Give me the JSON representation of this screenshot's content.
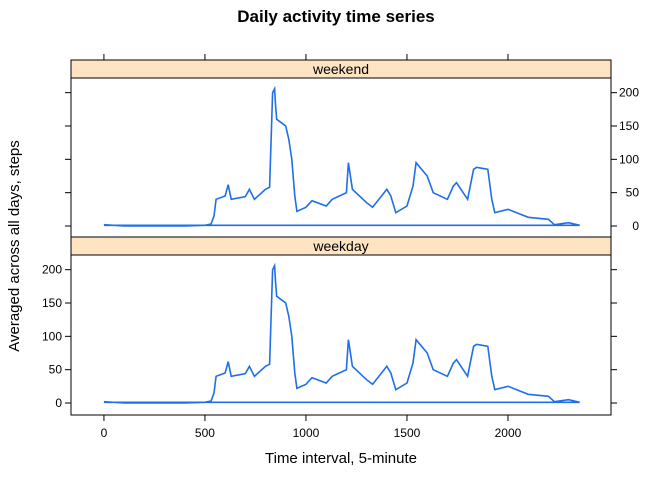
{
  "chart_data": {
    "type": "line",
    "title": "Daily activity time series",
    "xlabel": "Time interval, 5-minute",
    "ylabel": "Averaged across all days, steps",
    "color": "#1f6fe8",
    "x": [
      0,
      100,
      200,
      300,
      400,
      500,
      530,
      545,
      555,
      600,
      615,
      630,
      700,
      720,
      745,
      800,
      820,
      835,
      845,
      850,
      855,
      900,
      915,
      930,
      945,
      955,
      1000,
      1030,
      1100,
      1130,
      1200,
      1210,
      1230,
      1300,
      1330,
      1400,
      1420,
      1445,
      1500,
      1530,
      1545,
      1600,
      1630,
      1700,
      1730,
      1745,
      1800,
      1830,
      1845,
      1900,
      1920,
      1935,
      2000,
      2100,
      2200,
      2230,
      2300,
      2355,
      0
    ],
    "panels": [
      {
        "name": "weekend",
        "values": [
          2,
          0,
          0,
          0,
          0,
          1,
          3,
          15,
          40,
          45,
          62,
          40,
          44,
          55,
          40,
          55,
          58,
          200,
          206,
          180,
          160,
          150,
          130,
          100,
          45,
          22,
          28,
          38,
          30,
          40,
          50,
          95,
          55,
          35,
          28,
          55,
          45,
          20,
          30,
          60,
          95,
          75,
          50,
          40,
          60,
          65,
          40,
          85,
          88,
          85,
          40,
          20,
          25,
          13,
          10,
          2,
          5,
          1,
          1
        ]
      },
      {
        "name": "weekday",
        "values": [
          2,
          0,
          0,
          0,
          0,
          1,
          3,
          15,
          40,
          45,
          62,
          40,
          44,
          55,
          40,
          55,
          58,
          200,
          206,
          180,
          160,
          150,
          130,
          100,
          45,
          22,
          28,
          38,
          30,
          40,
          50,
          95,
          55,
          35,
          28,
          55,
          45,
          20,
          30,
          60,
          95,
          75,
          50,
          40,
          60,
          65,
          40,
          85,
          88,
          85,
          40,
          20,
          25,
          13,
          10,
          2,
          5,
          1,
          1
        ]
      }
    ],
    "xlim": [
      -163,
      2510
    ],
    "ylim": [
      -18,
      222
    ],
    "xticks": [
      0,
      500,
      1000,
      1500,
      2000
    ],
    "yticks": [
      0,
      50,
      100,
      150,
      200
    ],
    "strip_color": "#ffe4c4"
  }
}
